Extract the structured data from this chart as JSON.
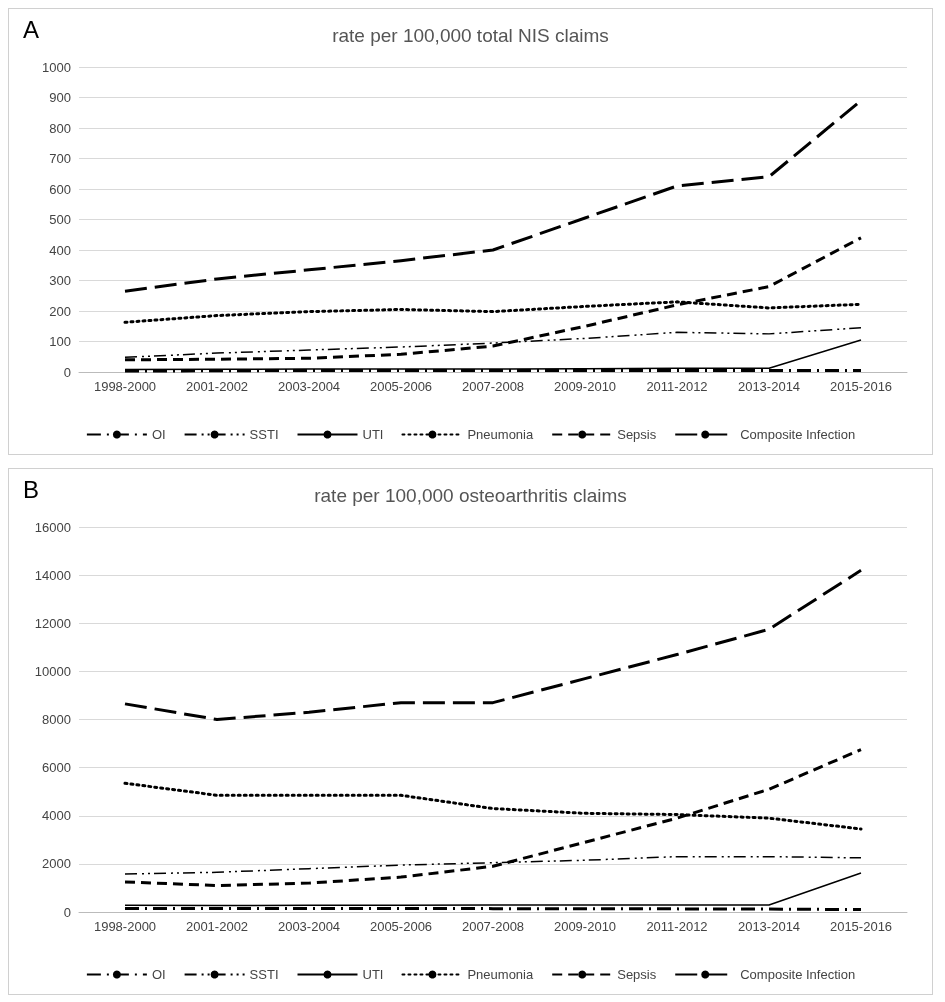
{
  "chart_data": [
    {
      "type": "line",
      "title": "rate per 100,000 total NIS claims",
      "annotations": [
        "A"
      ],
      "categories": [
        "1998-2000",
        "2001-2002",
        "2003-2004",
        "2005-2006",
        "2007-2008",
        "2009-2010",
        "2011-2012",
        "2013-2014",
        "2015-2016"
      ],
      "ylim": [
        0,
        1000
      ],
      "yticks": [
        0,
        100,
        200,
        300,
        400,
        500,
        600,
        700,
        800,
        900,
        1000
      ],
      "grid": "y",
      "legend": "bottom",
      "marker": "none",
      "series": [
        {
          "name": "OI",
          "color": "#000000",
          "line_style": "dashed",
          "values": [
            3,
            4,
            5,
            5,
            5,
            5,
            5,
            5,
            5
          ]
        },
        {
          "name": "SSTI",
          "color": "#000000",
          "line_style": "dashed",
          "values": [
            48,
            62,
            72,
            82,
            95,
            110,
            130,
            125,
            145
          ]
        },
        {
          "name": "UTI",
          "color": "#000000",
          "line_style": "solid",
          "values": [
            8,
            9,
            10,
            10,
            10,
            11,
            12,
            12,
            105
          ]
        },
        {
          "name": "Pneumonia",
          "color": "#000000",
          "line_style": "dotted",
          "values": [
            163,
            185,
            198,
            205,
            198,
            215,
            230,
            210,
            222
          ]
        },
        {
          "name": "Sepsis",
          "color": "#000000",
          "line_style": "dashed",
          "values": [
            40,
            42,
            45,
            58,
            85,
            150,
            220,
            280,
            440
          ]
        },
        {
          "name": "Composite Infection",
          "color": "#000000",
          "line_style": "dashed",
          "values": [
            265,
            305,
            335,
            365,
            400,
            505,
            610,
            640,
            890
          ]
        }
      ]
    },
    {
      "type": "line",
      "title": "rate per 100,000 osteoarthritis claims",
      "annotations": [
        "B"
      ],
      "categories": [
        "1998-2000",
        "2001-2002",
        "2003-2004",
        "2005-2006",
        "2007-2008",
        "2009-2010",
        "2011-2012",
        "2013-2014",
        "2015-2016"
      ],
      "ylim": [
        0,
        16000
      ],
      "yticks": [
        0,
        2000,
        4000,
        6000,
        8000,
        10000,
        12000,
        14000,
        16000
      ],
      "grid": "y",
      "legend": "bottom",
      "marker": "none",
      "series": [
        {
          "name": "OI",
          "color": "#000000",
          "line_style": "dashed",
          "values": [
            150,
            150,
            150,
            150,
            140,
            140,
            130,
            120,
            100
          ]
        },
        {
          "name": "SSTI",
          "color": "#000000",
          "line_style": "dashed",
          "values": [
            1580,
            1650,
            1800,
            1950,
            2050,
            2150,
            2300,
            2300,
            2250
          ]
        },
        {
          "name": "UTI",
          "color": "#000000",
          "line_style": "solid",
          "values": [
            280,
            270,
            280,
            280,
            290,
            290,
            290,
            290,
            1620
          ]
        },
        {
          "name": "Pneumonia",
          "color": "#000000",
          "line_style": "dotted",
          "values": [
            5350,
            4850,
            4850,
            4850,
            4300,
            4100,
            4050,
            3900,
            3450
          ]
        },
        {
          "name": "Sepsis",
          "color": "#000000",
          "line_style": "dashed",
          "values": [
            1250,
            1100,
            1200,
            1450,
            1900,
            2900,
            3900,
            5100,
            6750
          ]
        },
        {
          "name": "Composite Infection",
          "color": "#000000",
          "line_style": "dashed",
          "values": [
            8650,
            8000,
            8300,
            8700,
            8700,
            9700,
            10700,
            11750,
            14200
          ]
        }
      ]
    }
  ]
}
